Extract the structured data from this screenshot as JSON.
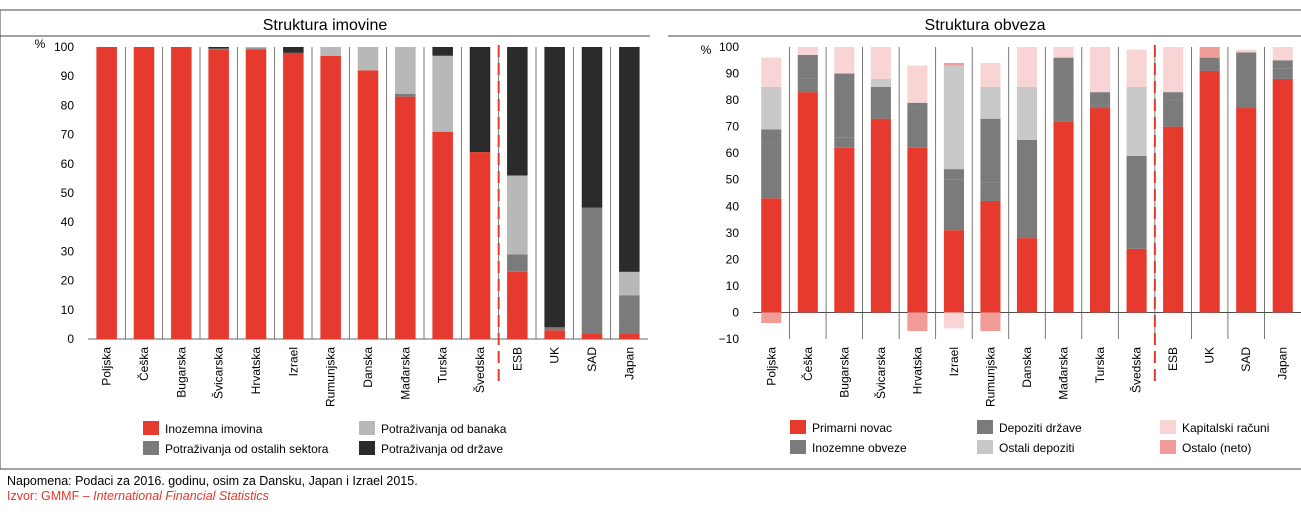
{
  "colors": {
    "red": "#e63a2e",
    "gray_mid": "#7b7b7b",
    "gray_light": "#b8b8b8",
    "black": "#2b2b2b",
    "gray_pale": "#c8c8c8",
    "pink_light": "#f9d4d4",
    "pink_mid": "#f29c98",
    "dashed_divider": "#e63a2e",
    "source_text": "#e2382d"
  },
  "chart_data": [
    {
      "type": "bar",
      "stacked": true,
      "title": "Struktura imovine",
      "ylabel": "%",
      "ylim": [
        0,
        100
      ],
      "yticks": [
        0,
        10,
        20,
        30,
        40,
        50,
        60,
        70,
        80,
        90,
        100
      ],
      "grid": false,
      "legend_position": "bottom",
      "divider_after_category": "Švedska",
      "categories": [
        "Poljska",
        "Češka",
        "Bugarska",
        "Švicarska",
        "Hrvatska",
        "Izrael",
        "Rumunjska",
        "Danska",
        "Mađarska",
        "Turska",
        "Švedska",
        "ESB",
        "UK",
        "SAD",
        "Japan"
      ],
      "series": [
        {
          "name": "Inozemna imovina",
          "color_key": "red",
          "values": [
            100,
            100,
            100,
            99,
            99,
            98,
            97,
            92,
            83,
            71,
            64,
            23,
            3,
            2,
            2
          ]
        },
        {
          "name": "Potraživanja od ostalih sektora",
          "color_key": "gray_mid",
          "values": [
            0,
            0,
            0,
            0.5,
            0.5,
            0,
            0,
            0,
            1,
            0,
            0,
            6,
            1,
            43,
            13
          ]
        },
        {
          "name": "Potraživanja od banaka",
          "color_key": "gray_light",
          "values": [
            0,
            0,
            0,
            0,
            0.5,
            0,
            3,
            8,
            16,
            26,
            0,
            27,
            0,
            0,
            8
          ]
        },
        {
          "name": "Potraživanja od države",
          "color_key": "black",
          "values": [
            0,
            0,
            0,
            0.5,
            0,
            2,
            0,
            0,
            0,
            3,
            36,
            44,
            96,
            55,
            77
          ]
        }
      ]
    },
    {
      "type": "bar",
      "stacked": true,
      "title": "Struktura obveza",
      "ylabel": "%",
      "ylim": [
        -10,
        100
      ],
      "yticks": [
        -10,
        0,
        10,
        20,
        30,
        40,
        50,
        60,
        70,
        80,
        90,
        100
      ],
      "grid": false,
      "legend_position": "bottom",
      "divider_after_category": "Švedska",
      "categories": [
        "Poljska",
        "Češka",
        "Bugarska",
        "Švicarska",
        "Hrvatska",
        "Izrael",
        "Rumunjska",
        "Danska",
        "Mađarska",
        "Turska",
        "Švedska",
        "ESB",
        "UK",
        "SAD",
        "Japan"
      ],
      "series": [
        {
          "name": "Primarni novac",
          "color_key": "red",
          "values": [
            43,
            83,
            62,
            73,
            62,
            31,
            42,
            28,
            72,
            77,
            24,
            70,
            91,
            77,
            88
          ]
        },
        {
          "name": "Inozemne obveze",
          "color_key": "gray_mid",
          "values": [
            21,
            5,
            4,
            12,
            15,
            19,
            7,
            4,
            12,
            1,
            5,
            10,
            5,
            13,
            4
          ]
        },
        {
          "name": "Depoziti države",
          "color_key": "gray_mid",
          "values": [
            5,
            9,
            24,
            0,
            2,
            4,
            24,
            33,
            12,
            5,
            30,
            3,
            0,
            8,
            3
          ]
        },
        {
          "name": "Ostali depoziti",
          "color_key": "gray_pale",
          "values": [
            16,
            0,
            0,
            3,
            0,
            39,
            12,
            20,
            0,
            0,
            26,
            0,
            0,
            0,
            0
          ]
        },
        {
          "name": "Kapitalski računi",
          "color_key": "pink_light",
          "values": [
            11,
            3,
            10,
            12,
            14,
            0,
            9,
            15,
            4,
            17,
            14,
            17,
            0,
            1,
            5
          ]
        },
        {
          "name": "Ostalo (neto)",
          "color_key": "pink_mid",
          "values": [
            -4,
            0,
            0,
            0,
            -7,
            1,
            -7,
            0,
            0,
            0,
            0,
            0,
            4,
            0,
            0
          ]
        },
        {
          "name": "",
          "color_key": "pink_light",
          "values": [
            0,
            0,
            0,
            0,
            0,
            -6,
            0,
            0,
            0,
            0,
            0,
            0,
            0,
            0,
            0
          ]
        }
      ]
    }
  ],
  "footer": {
    "note": "Napomena: Podaci za 2016. godinu, osim za Dansku, Japan i Izrael 2015.",
    "source_prefix": "Izvor: GMMF – ",
    "source_italic": "International Financial Statistics"
  }
}
